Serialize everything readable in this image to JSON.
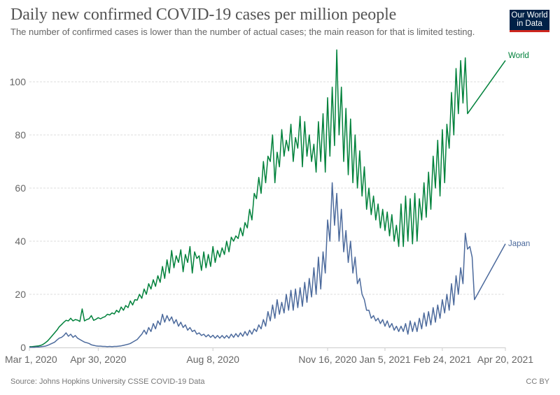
{
  "header": {
    "title": "Daily new confirmed COVID-19 cases per million people",
    "subtitle": "The number of confirmed cases is lower than the number of actual cases; the main reason for that is limited testing.",
    "logo_line1": "Our World",
    "logo_line2": "in Data"
  },
  "footer": {
    "source": "Source: Johns Hopkins University CSSE COVID-19 Data",
    "license": "CC BY"
  },
  "chart_data": {
    "type": "line",
    "title": "Daily new confirmed COVID-19 cases per million people",
    "subtitle": "The number of confirmed cases is lower than the number of actual cases; the main reason for that is limited testing.",
    "xlabel": "",
    "ylabel": "",
    "x_start": "2020-03-01",
    "x_end": "2021-04-20",
    "x_step_days": 2,
    "ylim": [
      0,
      110
    ],
    "yticks": [
      0,
      20,
      40,
      60,
      80,
      100
    ],
    "xtick_labels": [
      {
        "label": "Mar 1, 2020",
        "day": 0
      },
      {
        "label": "Apr 30, 2020",
        "day": 60
      },
      {
        "label": "Aug 8, 2020",
        "day": 160
      },
      {
        "label": "Nov 16, 2020",
        "day": 260
      },
      {
        "label": "Jan 5, 2021",
        "day": 310
      },
      {
        "label": "Feb 24, 2021",
        "day": 360
      },
      {
        "label": "Apr 20, 2021",
        "day": 415
      }
    ],
    "grid": true,
    "legend": "line-end labels (right)",
    "series": [
      {
        "name": "World",
        "color": "#00813b",
        "values": [
          0.3,
          0.3,
          0.4,
          0.5,
          0.6,
          0.8,
          1.2,
          1.8,
          2.5,
          3.5,
          4.5,
          5.5,
          6.5,
          7.8,
          8.6,
          9.5,
          10.2,
          10.0,
          11.0,
          10.0,
          10.5,
          10.3,
          9.8,
          14.5,
          10.0,
          10.5,
          10.8,
          12.0,
          10.2,
          10.6,
          11.2,
          10.8,
          11.3,
          11.6,
          12.5,
          12.2,
          13.0,
          12.6,
          14.0,
          13.2,
          15.2,
          14.0,
          15.8,
          15.0,
          17.5,
          16.0,
          18.0,
          17.8,
          20.0,
          18.5,
          22.0,
          20.0,
          24.0,
          22.0,
          25.5,
          23.0,
          27.0,
          24.5,
          30.5,
          26.0,
          33.0,
          28.0,
          36.5,
          30.0,
          34.5,
          32.0,
          36.8,
          28.5,
          35.0,
          32.0,
          38.0,
          28.0,
          36.0,
          33.5,
          34.5,
          29.0,
          36.0,
          30.0,
          35.0,
          30.5,
          38.0,
          32.0,
          36.5,
          34.0,
          37.5,
          35.0,
          40.0,
          36.0,
          41.5,
          40.0,
          42.0,
          41.0,
          45.0,
          42.0,
          47.0,
          45.0,
          52.0,
          48.0,
          58.0,
          56.0,
          64.0,
          58.0,
          70.0,
          62.0,
          72.0,
          70.0,
          80.0,
          62.0,
          73.5,
          68.0,
          82.0,
          72.0,
          78.0,
          74.0,
          84.0,
          70.0,
          79.0,
          75.0,
          87.0,
          68.0,
          85.0,
          72.0,
          80.0,
          70.0,
          76.5,
          66.0,
          85.0,
          70.0,
          88.0,
          66.0,
          94.0,
          72.0,
          98.0,
          76.0,
          112.0,
          80.0,
          98.0,
          70.0,
          90.0,
          65.0,
          86.0,
          62.0,
          80.0,
          60.0,
          74.0,
          57.0,
          68.0,
          52.0,
          60.0,
          50.0,
          57.0,
          48.0,
          54.0,
          45.0,
          52.0,
          44.0,
          51.0,
          42.0,
          50.0,
          40.0,
          46.0,
          38.0,
          54.0,
          38.0,
          57.0,
          40.0,
          56.0,
          39.0,
          58.0,
          40.0,
          56.0,
          48.0,
          62.0,
          49.0,
          66.0,
          52.0,
          72.0,
          60.0,
          78.0,
          57.0,
          82.0,
          62.0,
          84.0,
          75.0,
          96.0,
          80.0,
          105.0,
          88.0,
          108.0,
          92.0,
          109.0,
          88.0,
          108.0
        ]
      },
      {
        "name": "Japan",
        "color": "#4c6a9c",
        "values": [
          0.1,
          0.1,
          0.1,
          0.2,
          0.2,
          0.3,
          0.4,
          0.5,
          0.8,
          1.2,
          1.6,
          2.0,
          2.8,
          3.5,
          3.8,
          4.5,
          5.5,
          4.2,
          5.0,
          3.8,
          4.5,
          3.5,
          3.0,
          2.5,
          2.0,
          1.8,
          1.5,
          1.0,
          0.8,
          0.6,
          0.5,
          0.5,
          0.4,
          0.4,
          0.3,
          0.4,
          0.3,
          0.4,
          0.4,
          0.5,
          0.6,
          0.8,
          1.0,
          1.2,
          1.5,
          2.0,
          2.5,
          3.0,
          4.0,
          5.0,
          6.5,
          5.0,
          7.5,
          6.0,
          9.0,
          7.0,
          10.0,
          8.5,
          12.5,
          9.5,
          12.0,
          10.0,
          11.5,
          9.0,
          10.5,
          8.0,
          9.5,
          7.5,
          8.5,
          6.5,
          7.5,
          6.0,
          6.5,
          5.0,
          5.5,
          4.5,
          5.0,
          4.0,
          4.8,
          3.8,
          4.6,
          3.5,
          4.5,
          3.5,
          4.5,
          3.5,
          4.5,
          3.5,
          5.0,
          3.8,
          5.2,
          4.0,
          5.5,
          4.2,
          6.0,
          4.5,
          6.5,
          5.0,
          7.0,
          6.0,
          8.5,
          7.0,
          10.5,
          8.0,
          13.5,
          10.0,
          16.0,
          11.0,
          18.0,
          12.5,
          17.0,
          13.0,
          20.0,
          14.0,
          21.5,
          14.0,
          22.0,
          15.0,
          22.5,
          15.5,
          24.5,
          17.0,
          26.0,
          19.0,
          30.0,
          20.0,
          34.0,
          22.0,
          36.0,
          28.0,
          48.0,
          40.0,
          62.0,
          46.0,
          58.0,
          40.0,
          52.0,
          36.0,
          44.0,
          32.0,
          40.0,
          28.0,
          34.0,
          24.0,
          26.0,
          20.0,
          18.0,
          14.0,
          14.0,
          11.0,
          12.0,
          10.0,
          11.0,
          9.0,
          10.5,
          8.0,
          10.0,
          7.5,
          9.0,
          6.5,
          8.0,
          6.0,
          8.0,
          6.0,
          9.0,
          5.0,
          10.0,
          6.0,
          9.5,
          6.0,
          11.0,
          7.0,
          13.0,
          8.0,
          13.5,
          8.5,
          15.0,
          9.5,
          16.0,
          11.0,
          18.0,
          13.0,
          20.0,
          14.0,
          24.0,
          16.0,
          27.0,
          20.0,
          30.0,
          24.0,
          43.0,
          37.0,
          38.0,
          34.0,
          18.0,
          39.0
        ]
      }
    ]
  }
}
